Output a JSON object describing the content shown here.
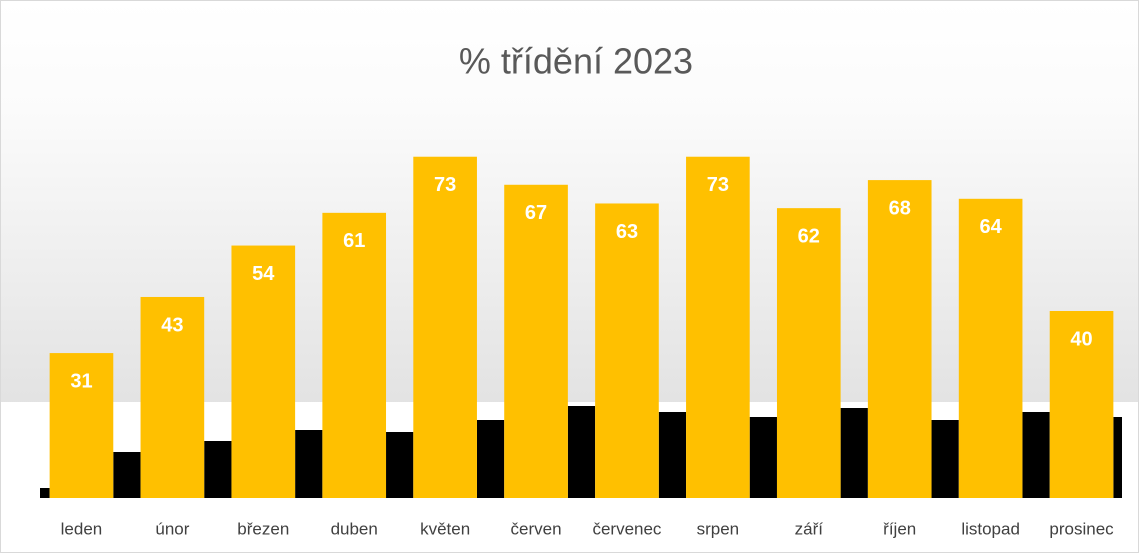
{
  "chart_data": {
    "type": "bar",
    "title": "% třídění 2023",
    "categories": [
      "leden",
      "únor",
      "březen",
      "duben",
      "květen",
      "červen",
      "červenec",
      "srpen",
      "září",
      "říjen",
      "listopad",
      "prosinec"
    ],
    "values": [
      31,
      43,
      54,
      61,
      73,
      67,
      63,
      73,
      62,
      68,
      64,
      40
    ],
    "color": "#ffc000",
    "ylim": [
      0,
      80
    ]
  }
}
